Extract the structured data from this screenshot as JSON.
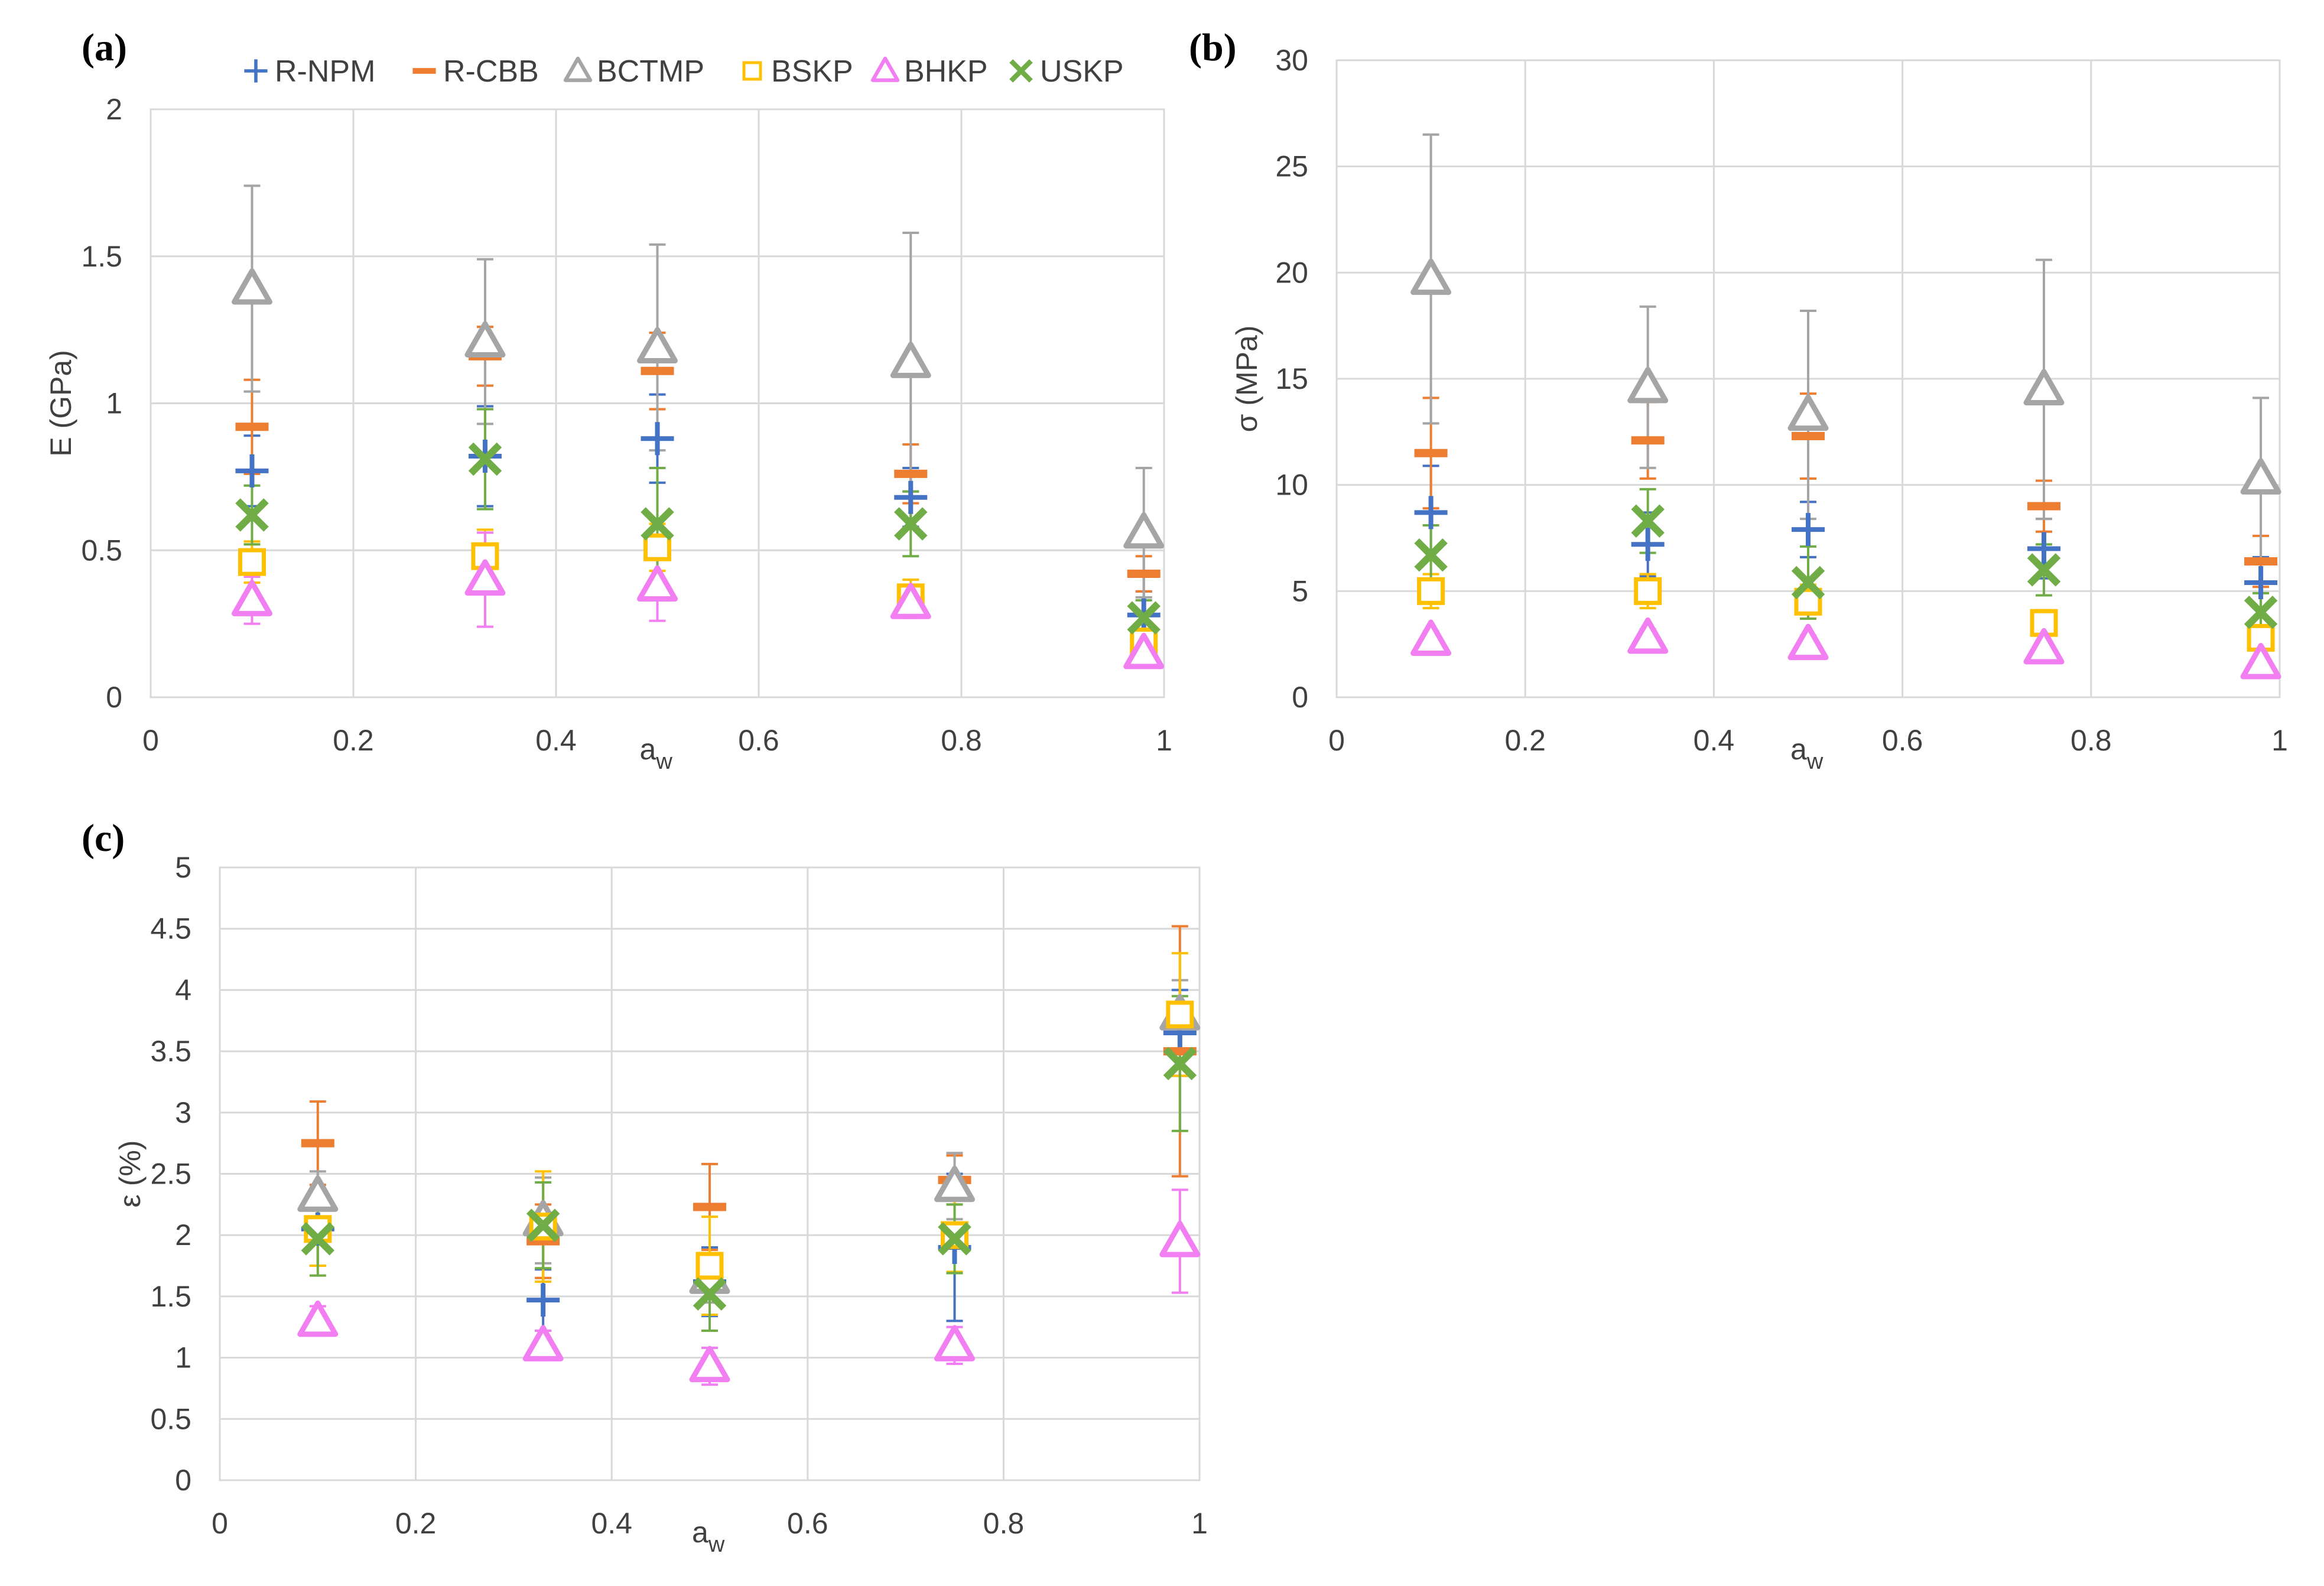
{
  "legend": [
    "R-NPM",
    "R-CBB",
    "BCTMP",
    "BSKP",
    "BHKP",
    "USKP"
  ],
  "colors": {
    "R-NPM": "#4472c4",
    "R-CBB": "#ed7d31",
    "BCTMP": "#a5a5a5",
    "BSKP": "#ffc000",
    "BHKP": "#f27ff2",
    "USKP": "#70ad47"
  },
  "markers": {
    "R-NPM": "plus",
    "R-CBB": "dash",
    "BCTMP": "triangle",
    "BSKP": "square",
    "BHKP": "triangle",
    "USKP": "x"
  },
  "chart_data": [
    {
      "type": "scatter",
      "panel": "(a)",
      "ylabel": "E (GPa)",
      "xlabel": "a",
      "xlabel_sub": "w",
      "xlim": [
        0,
        1
      ],
      "ylim": [
        0,
        2
      ],
      "xticks": [
        "0",
        "0.2",
        "0.4",
        "0.6",
        "0.8",
        "1"
      ],
      "yticks": [
        "0",
        "0.5",
        "1",
        "1.5",
        "2"
      ],
      "grid": true,
      "legend_position": "top",
      "series": [
        {
          "name": "R-NPM",
          "x": [
            0.1,
            0.33,
            0.5,
            0.75,
            0.98
          ],
          "y": [
            0.77,
            0.82,
            0.88,
            0.68,
            0.28
          ],
          "err": [
            0.12,
            0.17,
            0.15,
            0.1,
            0.08
          ]
        },
        {
          "name": "R-CBB",
          "x": [
            0.1,
            0.33,
            0.5,
            0.75,
            0.98
          ],
          "y": [
            0.92,
            1.16,
            1.11,
            0.76,
            0.42
          ],
          "err": [
            0.16,
            0.1,
            0.13,
            0.1,
            0.06
          ]
        },
        {
          "name": "BCTMP",
          "x": [
            0.1,
            0.33,
            0.5,
            0.75,
            0.98
          ],
          "y": [
            1.39,
            1.21,
            1.19,
            1.14,
            0.56
          ],
          "err": [
            0.35,
            0.28,
            0.35,
            0.44,
            0.22
          ]
        },
        {
          "name": "BSKP",
          "x": [
            0.1,
            0.33,
            0.5,
            0.75,
            0.98
          ],
          "y": [
            0.46,
            0.48,
            0.51,
            0.34,
            0.19
          ],
          "err": [
            0.07,
            0.09,
            0.08,
            0.06,
            0.04
          ]
        },
        {
          "name": "BHKP",
          "x": [
            0.1,
            0.33,
            0.5,
            0.75,
            0.98
          ],
          "y": [
            0.33,
            0.4,
            0.38,
            0.32,
            0.15
          ],
          "err": [
            0.08,
            0.16,
            0.12,
            0.05,
            0.03
          ]
        },
        {
          "name": "USKP",
          "x": [
            0.1,
            0.33,
            0.5,
            0.75,
            0.98
          ],
          "y": [
            0.62,
            0.81,
            0.59,
            0.59,
            0.27
          ],
          "err": [
            0.1,
            0.17,
            0.19,
            0.11,
            0.06
          ]
        }
      ]
    },
    {
      "type": "scatter",
      "panel": "(b)",
      "ylabel": "σ (MPa)",
      "xlabel": "a",
      "xlabel_sub": "w",
      "xlim": [
        0,
        1
      ],
      "ylim": [
        0,
        30
      ],
      "xticks": [
        "0",
        "0.2",
        "0.4",
        "0.6",
        "0.8",
        "1"
      ],
      "yticks": [
        "0",
        "5",
        "10",
        "15",
        "20",
        "25",
        "30"
      ],
      "grid": true,
      "series": [
        {
          "name": "R-NPM",
          "x": [
            0.1,
            0.33,
            0.5,
            0.75,
            0.98
          ],
          "y": [
            8.7,
            7.2,
            7.9,
            7.0,
            5.4
          ],
          "err": [
            2.2,
            1.5,
            1.3,
            1.4,
            1.2
          ]
        },
        {
          "name": "R-CBB",
          "x": [
            0.1,
            0.33,
            0.5,
            0.75,
            0.98
          ],
          "y": [
            11.5,
            12.1,
            12.3,
            9.0,
            6.4
          ],
          "err": [
            2.6,
            1.8,
            2.0,
            1.2,
            1.2
          ]
        },
        {
          "name": "BCTMP",
          "x": [
            0.1,
            0.33,
            0.5,
            0.75,
            0.98
          ],
          "y": [
            19.7,
            14.6,
            13.3,
            14.5,
            10.3
          ],
          "err": [
            6.8,
            3.8,
            4.9,
            6.1,
            3.8
          ]
        },
        {
          "name": "BSKP",
          "x": [
            0.1,
            0.33,
            0.5,
            0.75,
            0.98
          ],
          "y": [
            5.0,
            5.0,
            4.5,
            3.5,
            2.8
          ],
          "err": [
            0.8,
            0.8,
            0.8,
            0.6,
            0.5
          ]
        },
        {
          "name": "BHKP",
          "x": [
            0.1,
            0.33,
            0.5,
            0.75,
            0.98
          ],
          "y": [
            2.7,
            2.8,
            2.5,
            2.3,
            1.6
          ],
          "err": [
            0.4,
            0.4,
            0.4,
            0.3,
            0.3
          ]
        },
        {
          "name": "USKP",
          "x": [
            0.1,
            0.33,
            0.5,
            0.75,
            0.98
          ],
          "y": [
            6.7,
            8.3,
            5.4,
            6.0,
            4.0
          ],
          "err": [
            1.4,
            1.5,
            1.7,
            1.2,
            0.9
          ]
        }
      ]
    },
    {
      "type": "scatter",
      "panel": "(c)",
      "ylabel": "ε (%)",
      "xlabel": "a",
      "xlabel_sub": "w",
      "xlim": [
        0,
        1
      ],
      "ylim": [
        0,
        5
      ],
      "xticks": [
        "0",
        "0.2",
        "0.4",
        "0.6",
        "0.8",
        "1"
      ],
      "yticks": [
        "0",
        "0.5",
        "1",
        "1.5",
        "2",
        "2.5",
        "3",
        "3.5",
        "4",
        "4.5",
        "5"
      ],
      "grid": true,
      "series": [
        {
          "name": "R-NPM",
          "x": [
            0.1,
            0.33,
            0.5,
            0.75,
            0.98
          ],
          "y": [
            2.05,
            1.47,
            1.62,
            1.9,
            3.65
          ],
          "err": [
            0.3,
            0.25,
            0.28,
            0.6,
            0.35
          ]
        },
        {
          "name": "R-CBB",
          "x": [
            0.1,
            0.33,
            0.5,
            0.75,
            0.98
          ],
          "y": [
            2.75,
            1.95,
            2.23,
            2.45,
            3.5
          ],
          "err": [
            0.34,
            0.3,
            0.35,
            0.2,
            1.02
          ]
        },
        {
          "name": "BCTMP",
          "x": [
            0.1,
            0.33,
            0.5,
            0.75,
            0.98
          ],
          "y": [
            2.32,
            2.12,
            1.65,
            2.4,
            3.8
          ],
          "err": [
            0.2,
            0.35,
            0.2,
            0.27,
            0.28
          ]
        },
        {
          "name": "BSKP",
          "x": [
            0.1,
            0.33,
            0.5,
            0.75,
            0.98
          ],
          "y": [
            2.05,
            2.07,
            1.75,
            2.0,
            3.8
          ],
          "err": [
            0.3,
            0.45,
            0.4,
            0.3,
            0.5
          ]
        },
        {
          "name": "BHKP",
          "x": [
            0.1,
            0.33,
            0.5,
            0.75,
            0.98
          ],
          "y": [
            1.3,
            1.1,
            0.93,
            1.1,
            1.95
          ],
          "err": [
            0.12,
            0.12,
            0.15,
            0.15,
            0.42
          ]
        },
        {
          "name": "USKP",
          "x": [
            0.1,
            0.33,
            0.5,
            0.75,
            0.98
          ],
          "y": [
            1.97,
            2.08,
            1.52,
            1.97,
            3.4
          ],
          "err": [
            0.3,
            0.35,
            0.3,
            0.28,
            0.55
          ]
        }
      ]
    }
  ]
}
